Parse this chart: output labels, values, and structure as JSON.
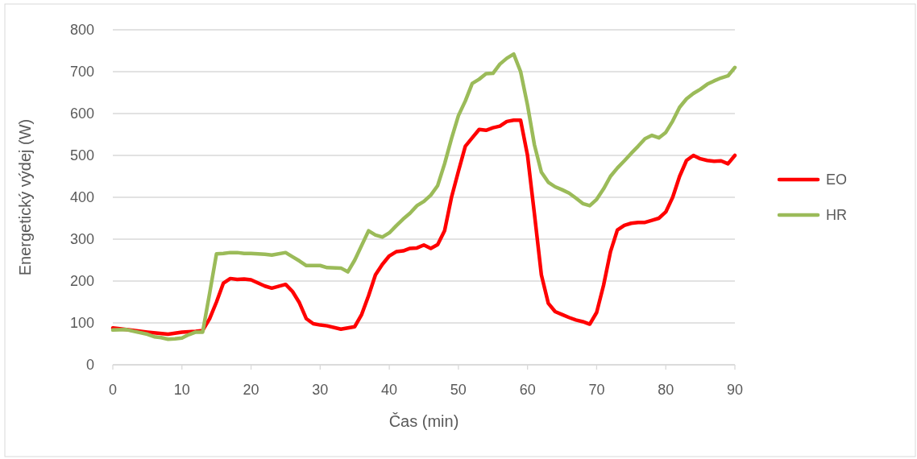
{
  "chart_data": {
    "type": "line",
    "xlabel": "Čas (min)",
    "ylabel": "Energetický výdej (W)",
    "xlim": [
      0,
      90
    ],
    "xticks": [
      0,
      10,
      20,
      30,
      40,
      50,
      60,
      70,
      80,
      90
    ],
    "ylim": [
      0,
      800
    ],
    "yticks": [
      0,
      100,
      200,
      300,
      400,
      500,
      600,
      700,
      800
    ],
    "grid": "y",
    "legend": "right",
    "line_style": "solid",
    "marker": "none",
    "series": [
      {
        "name": "EO",
        "color": "#ff0000",
        "x": [
          0,
          2,
          5,
          8,
          10,
          12,
          13,
          14,
          15,
          16,
          17,
          18,
          19,
          20,
          22,
          23,
          25,
          26,
          27,
          28,
          29,
          30,
          31,
          33,
          35,
          36,
          37,
          38,
          39,
          40,
          41,
          42,
          43,
          44,
          45,
          46,
          47,
          48,
          49,
          50,
          51,
          52,
          53,
          54,
          55,
          56,
          57,
          58,
          59,
          60,
          61,
          62,
          63,
          64,
          65,
          66,
          67,
          68,
          69,
          70,
          71,
          72,
          73,
          74,
          75,
          76,
          77,
          78,
          79,
          80,
          81,
          82,
          83,
          84,
          85,
          86,
          87,
          88,
          89,
          90
        ],
        "values": [
          88,
          84,
          78,
          73,
          78,
          80,
          82,
          110,
          150,
          195,
          206,
          204,
          205,
          203,
          188,
          183,
          192,
          175,
          148,
          110,
          98,
          95,
          93,
          85,
          91,
          120,
          165,
          215,
          240,
          260,
          270,
          272,
          278,
          279,
          286,
          278,
          287,
          320,
          400,
          462,
          522,
          542,
          562,
          560,
          566,
          570,
          581,
          584,
          584,
          500,
          360,
          215,
          147,
          127,
          120,
          113,
          107,
          103,
          97,
          125,
          190,
          270,
          322,
          333,
          338,
          340,
          340,
          345,
          350,
          365,
          400,
          450,
          488,
          500,
          492,
          488,
          486,
          487,
          480,
          500
        ]
      },
      {
        "name": "HR",
        "color": "#9bbb59",
        "x": [
          0,
          2,
          3,
          5,
          6,
          7,
          8,
          9,
          10,
          11,
          12,
          13,
          14,
          15,
          16,
          17,
          18,
          19,
          20,
          22,
          23,
          25,
          26,
          27,
          28,
          30,
          31,
          33,
          34,
          35,
          37,
          38,
          39,
          40,
          41,
          42,
          43,
          44,
          45,
          46,
          47,
          48,
          49,
          50,
          51,
          52,
          53,
          54,
          55,
          56,
          57,
          58,
          59,
          60,
          61,
          62,
          63,
          64,
          65,
          66,
          67,
          68,
          69,
          70,
          71,
          72,
          73,
          74,
          75,
          76,
          77,
          78,
          79,
          80,
          81,
          82,
          83,
          84,
          85,
          86,
          87,
          88,
          89,
          90
        ],
        "values": [
          83,
          84,
          80,
          73,
          67,
          65,
          61,
          62,
          64,
          72,
          78,
          78,
          170,
          265,
          266,
          268,
          268,
          266,
          266,
          264,
          262,
          268,
          258,
          248,
          237,
          237,
          232,
          231,
          222,
          250,
          320,
          310,
          305,
          315,
          332,
          348,
          362,
          380,
          390,
          405,
          428,
          480,
          540,
          595,
          630,
          672,
          682,
          695,
          696,
          718,
          732,
          742,
          700,
          620,
          525,
          460,
          436,
          425,
          418,
          410,
          398,
          385,
          380,
          395,
          420,
          450,
          470,
          487,
          505,
          522,
          540,
          548,
          542,
          555,
          582,
          615,
          635,
          648,
          658,
          670,
          678,
          685,
          690,
          710
        ]
      }
    ]
  }
}
